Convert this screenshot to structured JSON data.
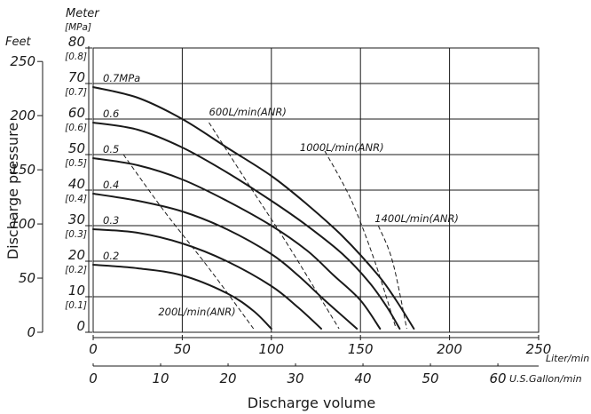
{
  "chart_data": {
    "type": "line",
    "y_title": "Discharge pressure",
    "x_title": "Discharge volume",
    "y_unit_header": "Meter",
    "y_unit_header_sub": "[MPa]",
    "y_left_header": "Feet",
    "x_unit_liter": "Liter/min",
    "x_unit_gallon": "U.S.Gallon/min",
    "x_range_liter": [
      0,
      250
    ],
    "y_range_meter": [
      0,
      80
    ],
    "grid": true,
    "meter_ticks": [
      {
        "value": 0,
        "label": "0",
        "mpa": ""
      },
      {
        "value": 10,
        "label": "10",
        "mpa": "[0.1]"
      },
      {
        "value": 20,
        "label": "20",
        "mpa": "[0.2]"
      },
      {
        "value": 30,
        "label": "30",
        "mpa": "[0.3]"
      },
      {
        "value": 40,
        "label": "40",
        "mpa": "[0.4]"
      },
      {
        "value": 50,
        "label": "50",
        "mpa": "[0.5]"
      },
      {
        "value": 60,
        "label": "60",
        "mpa": "[0.6]"
      },
      {
        "value": 70,
        "label": "70",
        "mpa": "[0.7]"
      },
      {
        "value": 80,
        "label": "80",
        "mpa": "[0.8]"
      }
    ],
    "feet_ticks": [
      {
        "value": 0,
        "label": "0"
      },
      {
        "value": 50,
        "label": "50"
      },
      {
        "value": 100,
        "label": "100"
      },
      {
        "value": 150,
        "label": "150"
      },
      {
        "value": 200,
        "label": "200"
      },
      {
        "value": 250,
        "label": "250"
      }
    ],
    "liter_ticks": [
      {
        "value": 0,
        "label": "0"
      },
      {
        "value": 50,
        "label": "50"
      },
      {
        "value": 100,
        "label": "100"
      },
      {
        "value": 150,
        "label": "150"
      },
      {
        "value": 200,
        "label": "200"
      },
      {
        "value": 250,
        "label": "250"
      }
    ],
    "gallon_ticks": [
      {
        "value": 0,
        "label": "0"
      },
      {
        "value": 10,
        "label": "10"
      },
      {
        "value": 20,
        "label": "20"
      },
      {
        "value": 30,
        "label": "30"
      },
      {
        "value": 40,
        "label": "40"
      },
      {
        "value": 50,
        "label": "50"
      },
      {
        "value": 60,
        "label": "60"
      }
    ],
    "pressure_series": [
      {
        "label": "0.7MPa",
        "points": [
          [
            0,
            69
          ],
          [
            25,
            66
          ],
          [
            50,
            60
          ],
          [
            75,
            52
          ],
          [
            100,
            44
          ],
          [
            120,
            36
          ],
          [
            140,
            27
          ],
          [
            160,
            16
          ],
          [
            170,
            9
          ],
          [
            180,
            1
          ]
        ]
      },
      {
        "label": "0.6",
        "points": [
          [
            0,
            59
          ],
          [
            25,
            57
          ],
          [
            50,
            52
          ],
          [
            75,
            45
          ],
          [
            100,
            37
          ],
          [
            120,
            30
          ],
          [
            140,
            22
          ],
          [
            155,
            14
          ],
          [
            165,
            7
          ],
          [
            172,
            1
          ]
        ]
      },
      {
        "label": "0.5",
        "points": [
          [
            0,
            49
          ],
          [
            25,
            47
          ],
          [
            50,
            43
          ],
          [
            75,
            37
          ],
          [
            100,
            30
          ],
          [
            120,
            23
          ],
          [
            135,
            16
          ],
          [
            150,
            9
          ],
          [
            161,
            1
          ]
        ]
      },
      {
        "label": "0.4",
        "points": [
          [
            0,
            39
          ],
          [
            25,
            37
          ],
          [
            50,
            34
          ],
          [
            75,
            29
          ],
          [
            100,
            22
          ],
          [
            115,
            16
          ],
          [
            130,
            9
          ],
          [
            148,
            1
          ]
        ]
      },
      {
        "label": "0.3",
        "points": [
          [
            0,
            29
          ],
          [
            25,
            28
          ],
          [
            50,
            25
          ],
          [
            75,
            20
          ],
          [
            100,
            13
          ],
          [
            115,
            7
          ],
          [
            128,
            1
          ]
        ]
      },
      {
        "label": "0.2",
        "points": [
          [
            0,
            19
          ],
          [
            25,
            18
          ],
          [
            50,
            16
          ],
          [
            75,
            11
          ],
          [
            90,
            6
          ],
          [
            100,
            1
          ]
        ]
      }
    ],
    "air_consumption_series": [
      {
        "label": "200L/min(ANR)",
        "points": [
          [
            17,
            50
          ],
          [
            40,
            34
          ],
          [
            65,
            18
          ],
          [
            90,
            1
          ]
        ]
      },
      {
        "label": "600L/min(ANR)",
        "points": [
          [
            65,
            59
          ],
          [
            88,
            41
          ],
          [
            110,
            24
          ],
          [
            138,
            1
          ]
        ]
      },
      {
        "label": "1000L/min(ANR)",
        "points": [
          [
            130,
            51
          ],
          [
            145,
            37
          ],
          [
            158,
            20
          ],
          [
            170,
            1
          ]
        ]
      },
      {
        "label": "1400L/min(ANR)",
        "points": [
          [
            160,
            30
          ],
          [
            168,
            20
          ],
          [
            176,
            1
          ]
        ]
      }
    ]
  }
}
